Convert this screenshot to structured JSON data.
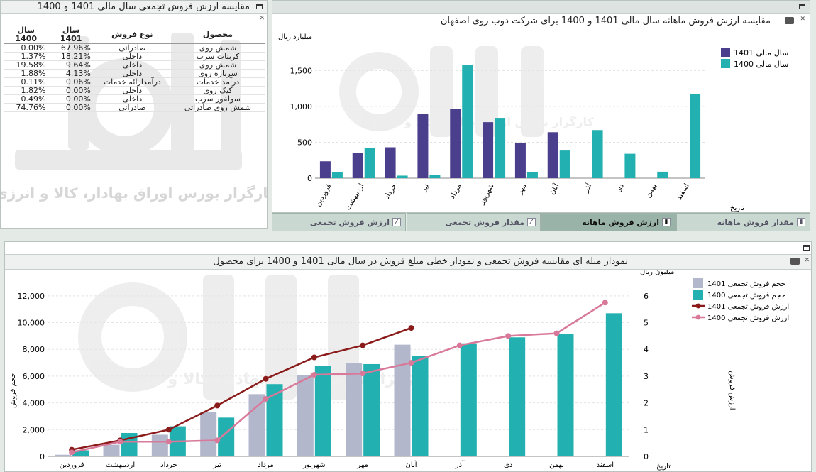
{
  "table_panel": {
    "title": "مقایسه ارزش فروش تجمعی سال مالی 1401 و 1400",
    "headers": {
      "product": "محصول",
      "sale_type": "نوع فروش",
      "y1401": "سال 1401",
      "y1400": "سال 1400"
    },
    "rows": [
      {
        "product": "شمش روی",
        "sale_type": "صادراتی",
        "y1401": "67.96%",
        "y1400": "0.00%"
      },
      {
        "product": "کربنات سرب",
        "sale_type": "داخلی",
        "y1401": "18.21%",
        "y1400": "1.37%"
      },
      {
        "product": "شمش روی",
        "sale_type": "داخلی",
        "y1401": "9.64%",
        "y1400": "19.58%"
      },
      {
        "product": "سرباره روی",
        "sale_type": "داخلی",
        "y1401": "4.13%",
        "y1400": "1.88%"
      },
      {
        "product": "درآمد خدمات",
        "sale_type": "درآمدارائه خدمات",
        "y1401": "0.06%",
        "y1400": "0.11%"
      },
      {
        "product": "کیک روی",
        "sale_type": "داخلی",
        "y1401": "0.00%",
        "y1400": "1.82%"
      },
      {
        "product": "سولفور سرب",
        "sale_type": "داخلی",
        "y1401": "0.00%",
        "y1400": "0.49%"
      },
      {
        "product": "شمش روی صادراتی",
        "sale_type": "صادراتی",
        "y1401": "0.00%",
        "y1400": "74.76%"
      }
    ],
    "watermark_text": "کارگزار بورس اوراق بهادار، کالا و انرژی"
  },
  "tabs": [
    {
      "label": "ارزش فروش تجمعی",
      "icon": "line-chart-icon",
      "active": false
    },
    {
      "label": "مقدار فروش تجمعی",
      "icon": "line-chart-icon",
      "active": false
    },
    {
      "label": "ارزش فروش ماهانه",
      "icon": "bar-chart-icon",
      "active": true
    },
    {
      "label": "مقدار فروش ماهانه",
      "icon": "bar-chart-icon",
      "active": false
    }
  ],
  "chart_data": [
    {
      "type": "bar",
      "title": "مقایسه ارزش فروش ماهانه سال مالی 1401 و 1400 برای شرکت ذوب روی اصفهان",
      "ylabel": "میلیارد ریال",
      "xlabel": "تاریخ",
      "ylim": [
        0,
        1800
      ],
      "yticks": [
        0,
        500,
        1000,
        1500
      ],
      "ytick_labels": [
        "0",
        "500",
        "1,000",
        "1,500"
      ],
      "categories": [
        "فروردین",
        "اردیبهشت",
        "خرداد",
        "تیر",
        "مرداد",
        "شهریور",
        "مهر",
        "آبان",
        "آذر",
        "دی",
        "بهمن",
        "اسفند"
      ],
      "legend_position": "top-right",
      "series": [
        {
          "name": "سال مالی 1401",
          "color": "#4a3f8c",
          "values": [
            235,
            355,
            430,
            890,
            960,
            780,
            490,
            640,
            null,
            null,
            null,
            null
          ]
        },
        {
          "name": "سال مالی 1400",
          "color": "#22b0b0",
          "values": [
            80,
            425,
            35,
            45,
            1580,
            840,
            80,
            385,
            670,
            340,
            90,
            1170
          ]
        }
      ],
      "watermark_text": "کارگزار بورس اوراق بهادار، کالا و انرژی"
    },
    {
      "type": "bar",
      "title": "نمودار میله ای مقایسه فروش تجمعی و نمودار خطی مبلغ فروش در سال مالی 1401 و 1400 برای محصول",
      "ylabel": "حجم فروش",
      "y2label": "ارزش فروش",
      "y2_unit": "میلیون ریال",
      "xlabel": "تاریخ",
      "ylim": [
        0,
        13000
      ],
      "yticks": [
        0,
        2000,
        4000,
        6000,
        8000,
        10000,
        12000
      ],
      "ytick_labels": [
        "0",
        "2,000",
        "4,000",
        "6,000",
        "8,000",
        "10,000",
        "12,000"
      ],
      "y2lim": [
        0,
        6.5
      ],
      "y2ticks": [
        0,
        1,
        2,
        3,
        4,
        5,
        6
      ],
      "categories": [
        "فروردین",
        "اردیبهشت",
        "خرداد",
        "تیر",
        "مرداد",
        "شهریور",
        "مهر",
        "آبان",
        "آذر",
        "دی",
        "بهمن",
        "اسفند"
      ],
      "legend_position": "top-right",
      "series": [
        {
          "name": "حجم فروش تجمعی  1401",
          "kind": "bar",
          "color": "#b3b7cc",
          "values": [
            120,
            870,
            1620,
            3300,
            4650,
            6100,
            6950,
            8350,
            null,
            null,
            null,
            null
          ]
        },
        {
          "name": "حجم فروش تجمعی 1400",
          "kind": "bar",
          "color": "#22b0b0",
          "values": [
            450,
            1750,
            2250,
            2900,
            5400,
            6750,
            6900,
            7500,
            8450,
            8900,
            9150,
            10700
          ]
        },
        {
          "name": "ارزش فروش تجمعی 1401",
          "kind": "line",
          "axis": "y2",
          "color": "#8b1a1a",
          "values": [
            0.25,
            0.6,
            1.0,
            1.9,
            2.9,
            3.7,
            4.15,
            4.8,
            null,
            null,
            null,
            null
          ]
        },
        {
          "name": "ارزش فروش تجمعی 1400",
          "kind": "line",
          "axis": "y2",
          "color": "#d8799a",
          "values": [
            0.15,
            0.55,
            0.55,
            0.6,
            2.15,
            3.05,
            3.1,
            3.5,
            4.15,
            4.5,
            4.6,
            5.75
          ]
        }
      ],
      "watermark_text": "کارگزار بورس اوراق بهادار، کالا و انرژی"
    }
  ]
}
